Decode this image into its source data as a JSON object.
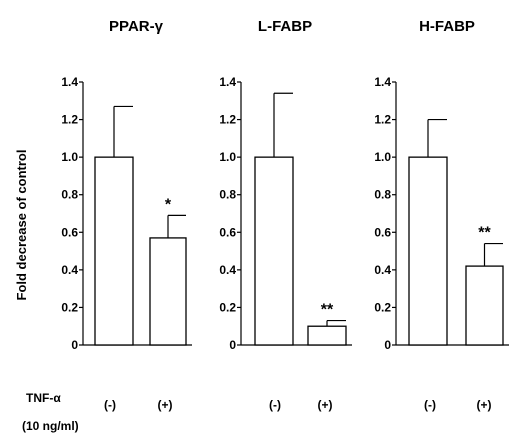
{
  "chart_data": {
    "type": "bar",
    "ylabel": "Fold decrease of control",
    "ylim": [
      0,
      1.4
    ],
    "yticks": [
      "0",
      "0.2",
      "0.4",
      "0.6",
      "0.8",
      "1.0",
      "1.2",
      "1.4"
    ],
    "categories": [
      "(-)",
      "(+)"
    ],
    "treatment_label": "TNF-α",
    "treatment_dose": "(10 ng/ml)",
    "bar_fill": "#ffffff",
    "bar_stroke": "#000000",
    "panels": [
      {
        "title": "PPAR-γ",
        "values": [
          1.0,
          0.57
        ],
        "errors": [
          0.27,
          0.12
        ],
        "significance": [
          "",
          "*"
        ]
      },
      {
        "title": "L-FABP",
        "values": [
          1.0,
          0.1
        ],
        "errors": [
          0.34,
          0.03
        ],
        "significance": [
          "",
          "**"
        ]
      },
      {
        "title": "H-FABP",
        "values": [
          1.0,
          0.42
        ],
        "errors": [
          0.2,
          0.12
        ],
        "significance": [
          "",
          "**"
        ]
      }
    ]
  }
}
